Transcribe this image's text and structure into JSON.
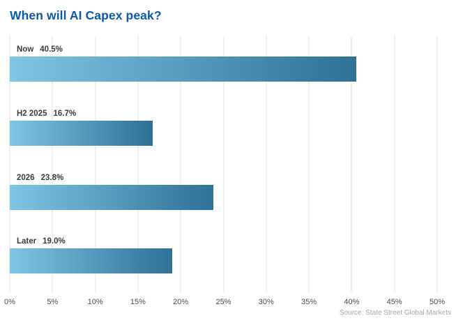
{
  "title": "When will AI Capex peak?",
  "source": "Source: State Street Global Markets",
  "colors": {
    "title": "#0c5aa6",
    "bar_gradient_start": "#7ec6e4",
    "bar_gradient_end": "#2d7196",
    "gridline": "#e2e2e2",
    "bar_label": "#3b3b3b",
    "tick_label": "#4a4a4a",
    "source_text": "#a6a6a6"
  },
  "chart_data": {
    "type": "bar",
    "orientation": "horizontal",
    "title": "When will AI Capex peak?",
    "categories": [
      "Now",
      "H2 2025",
      "2026",
      "Later"
    ],
    "values": [
      40.5,
      16.7,
      23.8,
      19.0
    ],
    "value_labels": [
      "40.5%",
      "16.7%",
      "23.8%",
      "19.0%"
    ],
    "xlabel": "",
    "ylabel": "",
    "xlim": [
      0,
      50
    ],
    "x_ticks": [
      "0%",
      "5%",
      "10%",
      "15%",
      "20%",
      "25%",
      "30%",
      "35%",
      "40%",
      "45%",
      "50%"
    ],
    "grid": true,
    "gridline_orientation": "vertical",
    "legend": false,
    "annotation": "Source: State Street Global Markets"
  }
}
